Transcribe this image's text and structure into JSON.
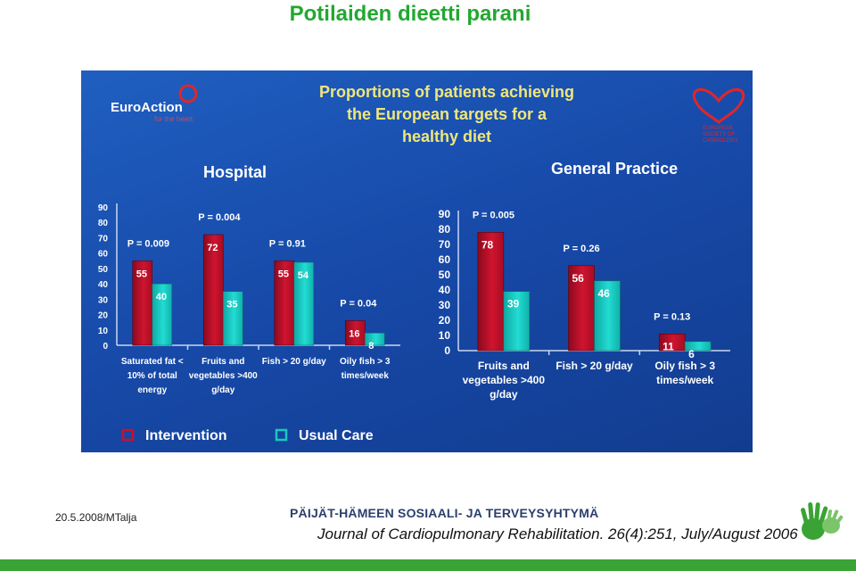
{
  "page": {
    "title": "Potilaiden dieetti parani",
    "footer_date": "20.5.2008/MTalja",
    "footer_org": "PÄIJÄT-HÄMEEN SOSIAALI- JA TERVEYSYHTYMÄ",
    "footer_reference": "Journal of Cardiopulmonary Rehabilitation. 26(4):251, July/August 2006"
  },
  "slide": {
    "title_lines": [
      "Proportions of patients achieving",
      "the European targets for a",
      "healthy diet"
    ],
    "euroaction_logo_text": "EuroAction",
    "euroaction_logo_subtext": "for the heart",
    "esc_logo_lines": [
      "EUROPEAN",
      "SOCIETY OF",
      "CARDIOLOGY"
    ]
  },
  "legend": {
    "items": [
      {
        "label": "Intervention",
        "color": "#c8102e"
      },
      {
        "label": "Usual Care",
        "color": "#19c9c0"
      }
    ]
  },
  "colors": {
    "intervention": "#c8102e",
    "usual_care": "#19c9c0",
    "background": "#1a4fae",
    "annotation_text": "#ffffff"
  },
  "chart_data": [
    {
      "type": "bar",
      "title": "Hospital",
      "categories": [
        [
          "Saturated fat <",
          "10% of total",
          "energy"
        ],
        [
          "Fruits and",
          "vegetables >400",
          "g/day"
        ],
        [
          "Fish > 20 g/day"
        ],
        [
          "Oily fish > 3",
          "times/week"
        ]
      ],
      "series": [
        {
          "name": "Intervention",
          "values": [
            55,
            72,
            55,
            16
          ]
        },
        {
          "name": "Usual Care",
          "values": [
            40,
            35,
            54,
            8
          ]
        }
      ],
      "p_values": [
        "P = 0.009",
        "P = 0.004",
        "P = 0.91",
        "P = 0.04"
      ],
      "ylim": [
        0,
        90
      ],
      "yticks": [
        0,
        10,
        20,
        30,
        40,
        50,
        60,
        70,
        80,
        90
      ],
      "grid": false,
      "legend": "bottom"
    },
    {
      "type": "bar",
      "title": "General Practice",
      "categories": [
        [
          "Fruits and",
          "vegetables >400",
          "g/day"
        ],
        [
          "Fish > 20 g/day"
        ],
        [
          "Oily fish > 3",
          "times/week"
        ]
      ],
      "series": [
        {
          "name": "Intervention",
          "values": [
            78,
            56,
            11
          ]
        },
        {
          "name": "Usual Care",
          "values": [
            39,
            46,
            6
          ]
        }
      ],
      "p_values": [
        "P = 0.005",
        "P = 0.26",
        "P = 0.13"
      ],
      "ylim": [
        0,
        90
      ],
      "yticks": [
        0,
        10,
        20,
        30,
        40,
        50,
        60,
        70,
        80,
        90
      ],
      "grid": false,
      "legend": "bottom"
    }
  ]
}
